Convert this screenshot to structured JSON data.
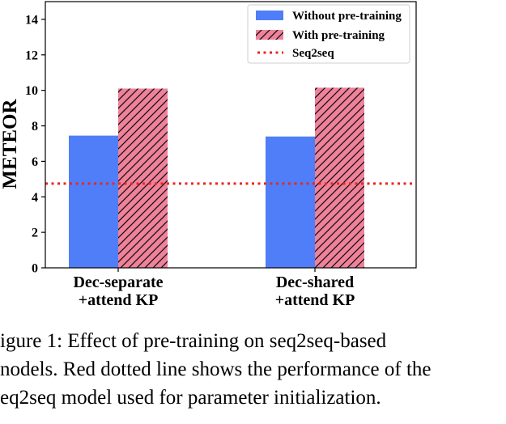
{
  "chart_data": {
    "type": "bar",
    "ylabel": "METEOR",
    "ylim": [
      0,
      15
    ],
    "yticks": [
      "0",
      "2",
      "4",
      "6",
      "8",
      "10",
      "12",
      "14"
    ],
    "categories": [
      {
        "line1": "Dec-separate",
        "line2": "+attend KP"
      },
      {
        "line1": "Dec-shared",
        "line2": "+attend KP"
      }
    ],
    "series": [
      {
        "name": "Without pre-training",
        "values": [
          7.45,
          7.4
        ],
        "color": "#4f7ef8",
        "pattern": "solid"
      },
      {
        "name": "With pre-training",
        "values": [
          10.1,
          10.15
        ],
        "color": "#f0819a",
        "pattern": "hatch"
      }
    ],
    "baseline": {
      "name": "Seq2seq",
      "value": 4.75,
      "color": "#e8281f",
      "style": "dotted"
    },
    "grid": false,
    "legend_position": "top-right"
  },
  "caption": {
    "line1": "igure 1:  Effect of pre-training on seq2seq-based",
    "line2": "nodels. Red dotted line shows the performance of the",
    "line3": "eq2seq model used for parameter initialization."
  }
}
